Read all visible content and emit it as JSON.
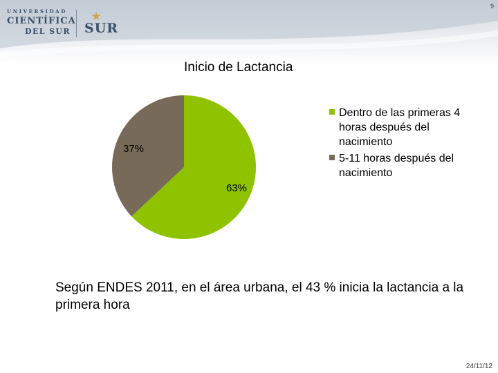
{
  "header": {
    "slide_number": "9",
    "logo": {
      "line1": "UNIVERSIDAD",
      "line2": "CIENTÍFICA",
      "line3": "DEL SUR",
      "mark": "SUR",
      "star_icon": "star-icon"
    }
  },
  "colors": {
    "slice_1": "#8fc300",
    "slice_2": "#776a59"
  },
  "chart_data": {
    "type": "pie",
    "title": "Inicio de Lactancia",
    "slices": [
      {
        "label": "Dentro de las primeras 4 horas después del nacimiento",
        "value": 63,
        "display": "63%"
      },
      {
        "label": "5-11 horas después del nacimiento",
        "value": 37,
        "display": "37%"
      }
    ],
    "legend_position": "right"
  },
  "note": "Según ENDES 2011, en el área urbana, el 43 % inicia la lactancia a la primera hora",
  "footer": {
    "date": "24/11/12"
  }
}
